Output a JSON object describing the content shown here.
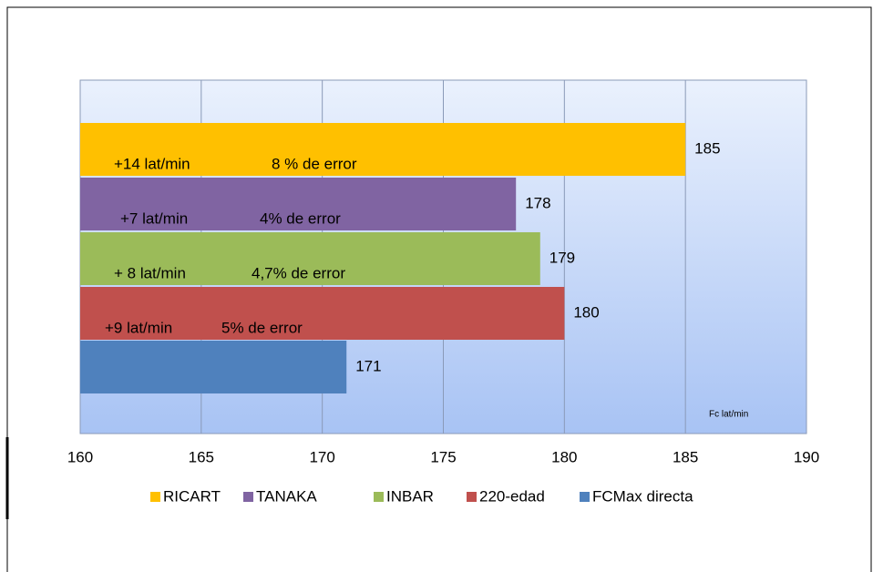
{
  "chart_data": {
    "type": "bar",
    "orientation": "horizontal",
    "series": [
      {
        "name": "RICART",
        "color": "#ffc000",
        "values": [
          185
        ],
        "notes": [
          "+14 lat/min",
          "8 % de error"
        ]
      },
      {
        "name": "TANAKA",
        "color": "#8064a2",
        "values": [
          178
        ],
        "notes": [
          "+7 lat/min",
          "4% de error"
        ]
      },
      {
        "name": "INBAR",
        "color": "#9bbb59",
        "values": [
          179
        ],
        "notes": [
          "+ 8 lat/min",
          "4,7% de error"
        ]
      },
      {
        "name": "220-edad",
        "color": "#c0504d",
        "values": [
          180
        ],
        "notes": [
          "+9 lat/min",
          "5% de error"
        ]
      },
      {
        "name": "FCMax directa",
        "color": "#4f81bd",
        "values": [
          171
        ]
      }
    ],
    "xlim": [
      160,
      190
    ],
    "xticks": [
      160,
      165,
      170,
      175,
      180,
      185,
      190
    ],
    "grid": true,
    "annotation": "Fc lat/min",
    "legend": "bottom"
  }
}
